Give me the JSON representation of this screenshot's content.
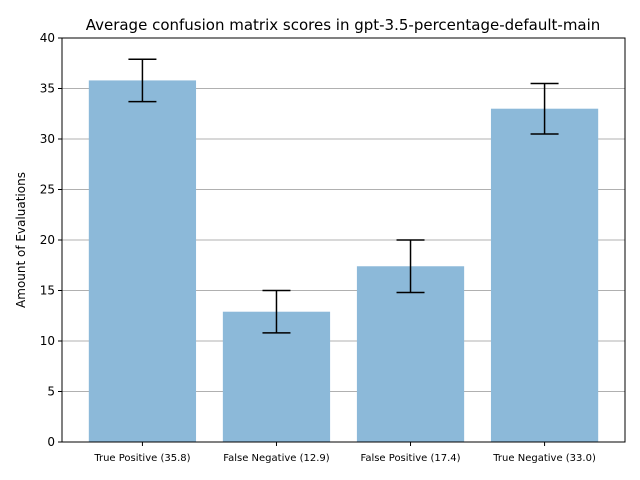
{
  "chart_data": {
    "type": "bar",
    "title": "Average confusion matrix scores in gpt-3.5-percentage-default-main",
    "xlabel": "",
    "ylabel": "Amount of Evaluations",
    "categories": [
      "True Positive (35.8)",
      "False Negative (12.9)",
      "False Positive (17.4)",
      "True Negative (33.0)"
    ],
    "values": [
      35.8,
      12.9,
      17.4,
      33.0
    ],
    "errors": [
      2.1,
      2.1,
      2.6,
      2.5
    ],
    "ylim": [
      0,
      40
    ],
    "yticks": [
      0,
      5,
      10,
      15,
      20,
      25,
      30,
      35,
      40
    ],
    "grid": "y",
    "bar_color": "#8cb9d9",
    "error_color": "#000000",
    "grid_color": "#b0b0b0"
  }
}
